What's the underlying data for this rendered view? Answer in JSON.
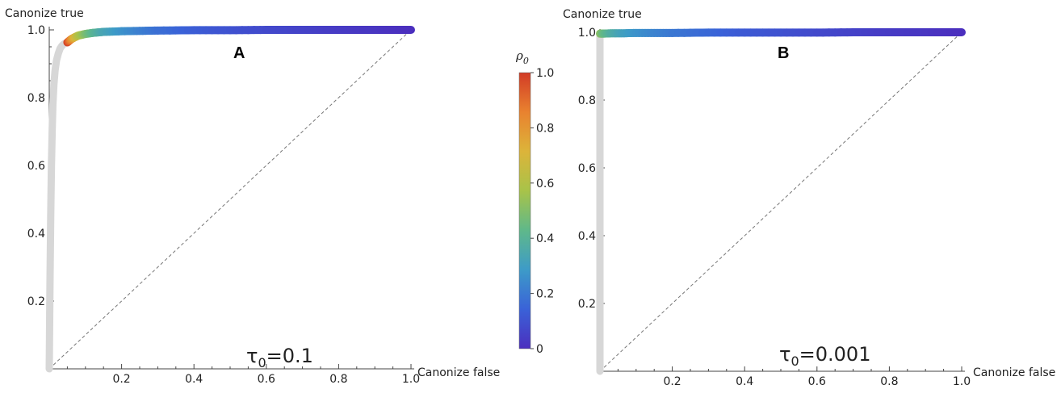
{
  "chart_data": [
    {
      "type": "line",
      "panel": "A",
      "annotation": "τ0=0.1",
      "annotation_symbol": "τ",
      "annotation_sub": "0",
      "annotation_value": "=0.1",
      "xlabel": "Canonize false",
      "ylabel": "Canonize true",
      "xlim": [
        0,
        1.0
      ],
      "ylim": [
        0,
        1.0
      ],
      "xticks": [
        "0.2",
        "0.4",
        "0.6",
        "0.8",
        "1.0"
      ],
      "yticks": [
        "0.2",
        "0.4",
        "0.6",
        "0.8",
        "1.0"
      ],
      "series": [
        {
          "x": [
            0.0,
            0.002,
            0.004,
            0.006,
            0.008,
            0.01,
            0.013,
            0.016,
            0.02,
            0.025,
            0.03,
            0.035,
            0.04,
            0.045,
            0.05
          ],
          "y": [
            0.0,
            0.25,
            0.45,
            0.6,
            0.7,
            0.78,
            0.84,
            0.88,
            0.91,
            0.93,
            0.945,
            0.953,
            0.958,
            0.961,
            0.963
          ],
          "color": "#d7d7d7"
        },
        {
          "x": [
            0.05,
            0.06,
            0.07,
            0.08,
            0.1,
            0.12,
            0.15,
            0.2,
            0.25,
            0.3,
            0.4,
            0.5,
            0.6,
            0.7,
            0.8,
            0.9,
            1.0
          ],
          "y": [
            0.963,
            0.972,
            0.978,
            0.983,
            0.988,
            0.991,
            0.994,
            0.996,
            0.997,
            0.998,
            0.999,
            0.999,
            1.0,
            1.0,
            1.0,
            1.0,
            1.0
          ],
          "rho0": [
            1.0,
            0.85,
            0.72,
            0.62,
            0.5,
            0.42,
            0.34,
            0.27,
            0.22,
            0.18,
            0.13,
            0.1,
            0.075,
            0.055,
            0.035,
            0.02,
            0.0
          ]
        }
      ]
    },
    {
      "type": "line",
      "panel": "B",
      "annotation": "τ0=0.001",
      "annotation_symbol": "τ",
      "annotation_sub": "0",
      "annotation_value": "=0.001",
      "xlabel": "Canonize false",
      "ylabel": "Canonize true",
      "xlim": [
        0,
        1.0
      ],
      "ylim": [
        0,
        1.0
      ],
      "xticks": [
        "0.2",
        "0.4",
        "0.6",
        "0.8",
        "1.0"
      ],
      "yticks": [
        "0.2",
        "0.4",
        "0.6",
        "0.8",
        "1.0"
      ],
      "series": [
        {
          "x": [
            0.0,
            0.0,
            0.0,
            0.0
          ],
          "y": [
            0.0,
            0.4,
            0.8,
            0.99
          ],
          "color": "#d7d7d7"
        },
        {
          "x": [
            0.0,
            0.01,
            0.03,
            0.06,
            0.1,
            0.15,
            0.2,
            0.3,
            0.4,
            0.5,
            0.6,
            0.7,
            0.8,
            0.9,
            1.0
          ],
          "y": [
            0.996,
            0.996,
            0.997,
            0.997,
            0.998,
            0.998,
            0.998,
            0.999,
            0.999,
            0.999,
            0.999,
            1.0,
            1.0,
            1.0,
            1.0
          ],
          "rho0": [
            0.52,
            0.45,
            0.38,
            0.32,
            0.27,
            0.23,
            0.2,
            0.16,
            0.12,
            0.1,
            0.075,
            0.055,
            0.035,
            0.02,
            0.0
          ]
        }
      ]
    }
  ],
  "colorbar": {
    "title_symbol": "ρ",
    "title_sub": "0",
    "range": [
      0,
      1.0
    ],
    "ticks": [
      "0",
      "0.2",
      "0.4",
      "0.6",
      "0.8",
      "1.0"
    ],
    "colors": [
      "#4b2fbe",
      "#3a62d8",
      "#3d9bc8",
      "#5fb88a",
      "#a8c349",
      "#dcb43a",
      "#e9822f",
      "#d23b26"
    ]
  }
}
